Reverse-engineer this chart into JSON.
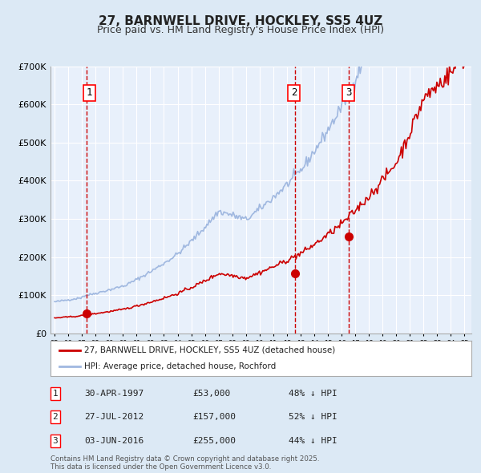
{
  "title": "27, BARNWELL DRIVE, HOCKLEY, SS5 4UZ",
  "subtitle": "Price paid vs. HM Land Registry's House Price Index (HPI)",
  "bg_color": "#dce9f5",
  "plot_bg_color": "#e8f0fb",
  "grid_color": "#ffffff",
  "hpi_color": "#a0b8e0",
  "price_color": "#cc0000",
  "vline_color": "#cc0000",
  "ylim": [
    0,
    700000
  ],
  "yticks": [
    0,
    100000,
    200000,
    300000,
    400000,
    500000,
    600000,
    700000
  ],
  "ytick_labels": [
    "£0",
    "£100K",
    "£200K",
    "£300K",
    "£400K",
    "£500K",
    "£600K",
    "£700K"
  ],
  "transactions": [
    {
      "label": "1",
      "date": "1997-04-30",
      "price": 53000,
      "note": "48% ↓ HPI"
    },
    {
      "label": "2",
      "date": "2012-07-27",
      "price": 157000,
      "note": "52% ↓ HPI"
    },
    {
      "label": "3",
      "date": "2016-06-03",
      "price": 255000,
      "note": "44% ↓ HPI"
    }
  ],
  "legend_line1": "27, BARNWELL DRIVE, HOCKLEY, SS5 4UZ (detached house)",
  "legend_line2": "HPI: Average price, detached house, Rochford",
  "footer": "Contains HM Land Registry data © Crown copyright and database right 2025.\nThis data is licensed under the Open Government Licence v3.0.",
  "xstart_year": 1995,
  "xend_year": 2025,
  "table_rows": [
    {
      "label": "1",
      "date": "30-APR-1997",
      "price": "£53,000",
      "note": "48% ↓ HPI"
    },
    {
      "label": "2",
      "date": "27-JUL-2012",
      "price": "£157,000",
      "note": "52% ↓ HPI"
    },
    {
      "label": "3",
      "date": "03-JUN-2016",
      "price": "£255,000",
      "note": "44% ↓ HPI"
    }
  ]
}
